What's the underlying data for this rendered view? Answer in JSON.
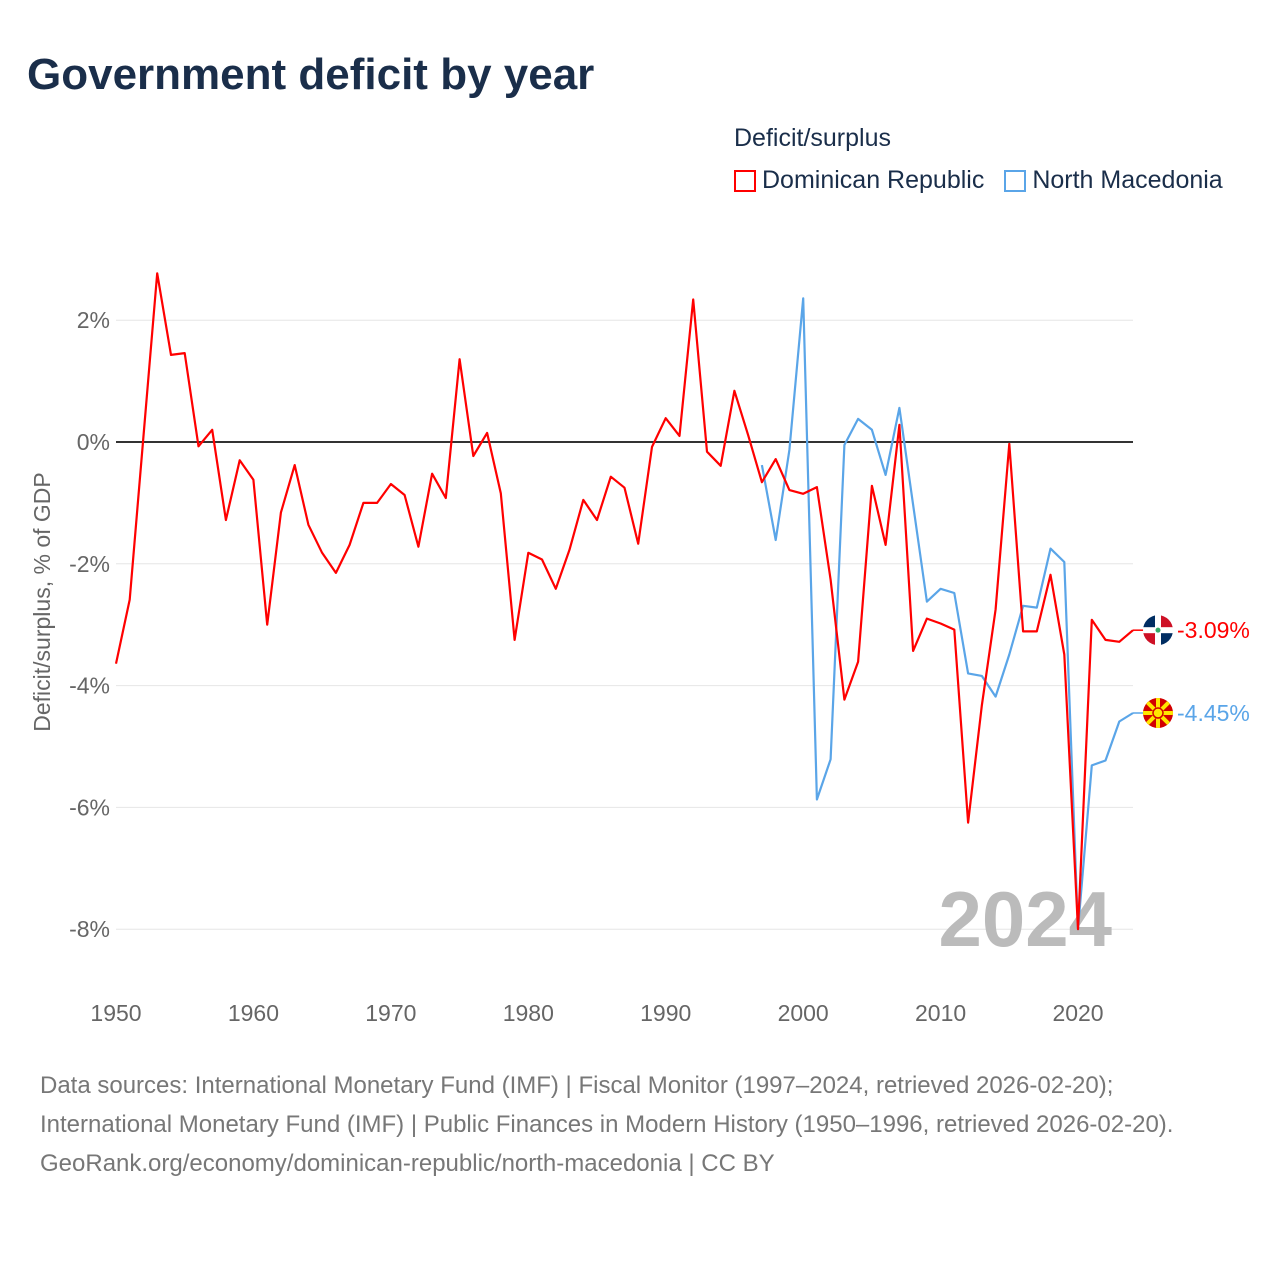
{
  "title": "Government deficit by year",
  "legend": {
    "title": "Deficit/surplus",
    "items": [
      {
        "label": "Dominican Republic",
        "color": "#ff0000"
      },
      {
        "label": "North Macedonia",
        "color": "#5aa5e8"
      }
    ]
  },
  "year_watermark": "2024",
  "footer": {
    "sources": "Data sources: International Monetary Fund (IMF) | Fiscal Monitor (1997–2024, retrieved 2026-02-20); International Monetary Fund (IMF) | Public Finances in Modern History (1950–1996, retrieved 2026-02-20).",
    "link": "GeoRank.org/economy/dominican-republic/north-macedonia | CC BY"
  },
  "chart_data": {
    "type": "line",
    "title": "Government deficit by year",
    "xlabel": "",
    "ylabel": "Deficit/surplus, % of GDP",
    "xlim": [
      1950,
      2024
    ],
    "ylim": [
      -9,
      3
    ],
    "xticks": [
      1950,
      1960,
      1970,
      1980,
      1990,
      2000,
      2010,
      2020
    ],
    "yticks": [
      2,
      0,
      -2,
      -4,
      -6,
      -8
    ],
    "ytick_labels": [
      "2%",
      "0%",
      "-2%",
      "-4%",
      "-6%",
      "-8%"
    ],
    "grid": true,
    "legend_position": "top-right",
    "series": [
      {
        "name": "Dominican Republic",
        "color": "#ff0000",
        "end_label": "-3.09%",
        "start_year": 1950,
        "values": [
          -3.64,
          -2.59,
          0.1,
          2.77,
          1.43,
          1.46,
          -0.07,
          0.2,
          -1.28,
          -0.3,
          -0.62,
          -3.0,
          -1.16,
          -0.38,
          -1.36,
          -1.82,
          -2.15,
          -1.69,
          -1.0,
          -1.0,
          -0.69,
          -0.87,
          -1.72,
          -0.52,
          -0.92,
          1.36,
          -0.23,
          0.15,
          -0.84,
          -3.25,
          -1.82,
          -1.93,
          -2.41,
          -1.77,
          -0.95,
          -1.28,
          -0.57,
          -0.75,
          -1.67,
          -0.08,
          0.39,
          0.1,
          2.34,
          -0.16,
          -0.39,
          0.84,
          0.11,
          -0.66,
          -0.28,
          -0.79,
          -0.85,
          -0.74,
          -2.26,
          -4.23,
          -3.61,
          -0.72,
          -1.69,
          0.28,
          -3.43,
          -2.9,
          -2.98,
          -3.08,
          -6.25,
          -4.33,
          -2.75,
          -0.03,
          -3.11,
          -3.11,
          -2.18,
          -3.49,
          -8.0,
          -2.92,
          -3.25,
          -3.28,
          -3.09
        ]
      },
      {
        "name": "North Macedonia",
        "color": "#5aa5e8",
        "end_label": "-4.45%",
        "start_year": 1997,
        "values": [
          -0.38,
          -1.61,
          -0.13,
          2.36,
          -5.87,
          -5.21,
          -0.05,
          0.38,
          0.2,
          -0.54,
          0.56,
          -1.03,
          -2.62,
          -2.41,
          -2.48,
          -3.8,
          -3.84,
          -4.18,
          -3.49,
          -2.69,
          -2.72,
          -1.75,
          -1.97,
          -8.0,
          -5.31,
          -5.23,
          -4.59,
          -4.45
        ]
      }
    ]
  }
}
